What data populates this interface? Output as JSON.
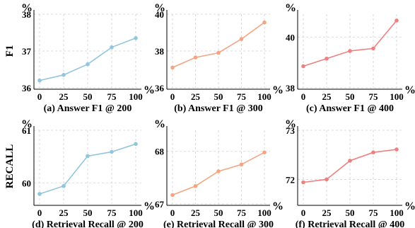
{
  "row_labels": [
    "F1",
    "RECALL"
  ],
  "chart_data": [
    {
      "type": "line",
      "caption": "(a) Answer F1 @ 200",
      "x": [
        0,
        25,
        50,
        75,
        100
      ],
      "xticks": [
        "0",
        "25",
        "50",
        "75",
        "100"
      ],
      "x_unit": "%",
      "y_unit": "%",
      "ylim": [
        36,
        38
      ],
      "yticks": [
        36,
        37,
        38
      ],
      "ylabel": "F1",
      "color": "#92c5de",
      "grid": true,
      "series": [
        {
          "values": [
            36.2,
            36.35,
            36.64,
            37.1,
            37.35
          ]
        }
      ]
    },
    {
      "type": "line",
      "caption": "(b) Answer F1 @ 300",
      "x": [
        0,
        25,
        50,
        75,
        100
      ],
      "xticks": [
        "0",
        "25",
        "50",
        "75",
        "100"
      ],
      "x_unit": "%",
      "y_unit": "%",
      "ylim": [
        36,
        40
      ],
      "yticks": [
        36,
        38,
        40
      ],
      "color": "#f4a582",
      "grid": true,
      "series": [
        {
          "values": [
            37.1,
            37.65,
            37.9,
            38.65,
            39.55
          ]
        }
      ]
    },
    {
      "type": "line",
      "caption": "(c) Answer F1 @ 400",
      "x": [
        0,
        25,
        50,
        75,
        100
      ],
      "xticks": [
        "0",
        "25",
        "50",
        "75",
        "100"
      ],
      "x_unit": "%",
      "y_unit": "%",
      "ylim": [
        38,
        40.9
      ],
      "yticks": [
        38,
        40
      ],
      "color": "#f08080",
      "grid": true,
      "series": [
        {
          "values": [
            38.85,
            39.15,
            39.45,
            39.55,
            40.65
          ]
        }
      ]
    },
    {
      "type": "line",
      "caption": "(d) Retrieval Recall @ 200",
      "x": [
        0,
        25,
        50,
        75,
        100
      ],
      "xticks": [
        "0",
        "25",
        "50",
        "75",
        "100"
      ],
      "x_unit": "%",
      "y_unit": "%",
      "ylim": [
        59.6,
        61
      ],
      "yticks": [
        60,
        61
      ],
      "ylabel": "RECALL",
      "color": "#92c5de",
      "grid": true,
      "series": [
        {
          "values": [
            59.79,
            59.94,
            60.51,
            60.59,
            60.74
          ]
        }
      ]
    },
    {
      "type": "line",
      "caption": "(e) Retrieval Recall @ 300",
      "x": [
        0,
        25,
        50,
        75,
        100
      ],
      "xticks": [
        "0",
        "25",
        "50",
        "75",
        "100"
      ],
      "x_unit": "%",
      "y_unit": "%",
      "ylim": [
        67,
        68.4
      ],
      "yticks": [
        67,
        68
      ],
      "color": "#f4a582",
      "grid": true,
      "series": [
        {
          "values": [
            67.17,
            67.34,
            67.62,
            67.75,
            67.98
          ]
        }
      ]
    },
    {
      "type": "line",
      "caption": "(f) Retrieval Recall @ 400",
      "x": [
        0,
        25,
        50,
        75,
        100
      ],
      "xticks": [
        "0",
        "25",
        "50",
        "75",
        "100"
      ],
      "x_unit": "%",
      "y_unit": "%",
      "ylim": [
        71.5,
        73
      ],
      "yticks": [
        72,
        73
      ],
      "color": "#f08080",
      "grid": true,
      "series": [
        {
          "values": [
            71.94,
            72.0,
            72.38,
            72.55,
            72.61
          ]
        }
      ]
    }
  ]
}
